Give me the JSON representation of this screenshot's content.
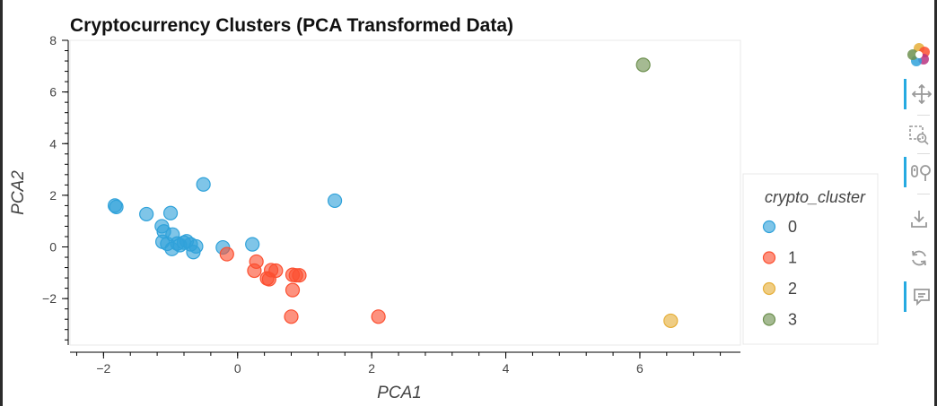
{
  "chart_data": {
    "type": "scatter",
    "title": "Cryptocurrency Clusters (PCA Transformed Data)",
    "xlabel": "PCA1",
    "ylabel": "PCA2",
    "xlim": [
      -2.5,
      7.5
    ],
    "ylim": [
      -3.8,
      8.0
    ],
    "x_ticks": [
      "−2",
      "0",
      "2",
      "4",
      "6"
    ],
    "y_ticks": [
      "−2",
      "0",
      "2",
      "4",
      "6",
      "8"
    ],
    "grid": false,
    "legend_title": "crypto_cluster",
    "legend_position": "right",
    "series": [
      {
        "name": "0",
        "color": "#30a2da",
        "points": [
          [
            -1.83,
            1.6
          ],
          [
            -1.81,
            1.55
          ],
          [
            -1.36,
            1.27
          ],
          [
            -1.0,
            1.31
          ],
          [
            -0.51,
            2.42
          ],
          [
            -1.13,
            0.8
          ],
          [
            -1.1,
            0.6
          ],
          [
            -0.97,
            0.48
          ],
          [
            -1.12,
            0.2
          ],
          [
            -1.05,
            0.12
          ],
          [
            -0.98,
            -0.08
          ],
          [
            -0.9,
            0.13
          ],
          [
            -0.86,
            0.07
          ],
          [
            -0.8,
            0.17
          ],
          [
            -0.76,
            0.22
          ],
          [
            -0.7,
            0.1
          ],
          [
            -0.66,
            -0.2
          ],
          [
            -0.62,
            0.02
          ],
          [
            -0.22,
            -0.02
          ],
          [
            0.22,
            0.1
          ],
          [
            1.45,
            1.79
          ]
        ]
      },
      {
        "name": "1",
        "color": "#fc4f30",
        "points": [
          [
            -0.16,
            -0.28
          ],
          [
            0.28,
            -0.57
          ],
          [
            0.25,
            -0.92
          ],
          [
            0.44,
            -1.22
          ],
          [
            0.47,
            -1.25
          ],
          [
            0.5,
            -0.9
          ],
          [
            0.57,
            -0.92
          ],
          [
            0.82,
            -1.08
          ],
          [
            0.87,
            -1.1
          ],
          [
            0.92,
            -1.1
          ],
          [
            0.82,
            -1.67
          ],
          [
            0.8,
            -2.7
          ],
          [
            2.1,
            -2.7
          ]
        ]
      },
      {
        "name": "2",
        "color": "#e5ae38",
        "points": [
          [
            6.46,
            -2.86
          ]
        ]
      },
      {
        "name": "3",
        "color": "#6d904f",
        "points": [
          [
            6.05,
            7.05
          ]
        ]
      }
    ]
  },
  "toolbar": {
    "tools": [
      {
        "name": "bokeh-logo-icon",
        "active": false,
        "interactable": true
      },
      {
        "name": "pan-icon",
        "active": true,
        "interactable": true
      },
      {
        "name": "box-zoom-icon",
        "active": false,
        "interactable": true
      },
      {
        "name": "wheel-zoom-icon",
        "active": true,
        "interactable": true
      },
      {
        "name": "save-icon",
        "active": false,
        "interactable": true
      },
      {
        "name": "reset-icon",
        "active": false,
        "interactable": true
      },
      {
        "name": "hover-icon",
        "active": true,
        "interactable": true
      }
    ]
  }
}
